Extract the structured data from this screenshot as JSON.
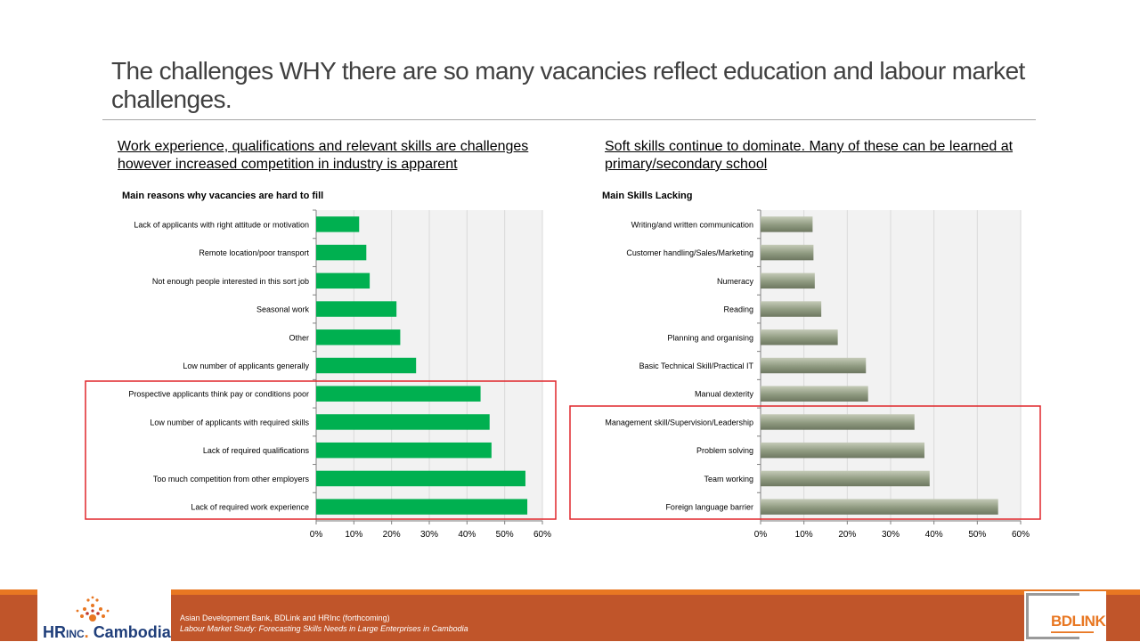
{
  "title": "The challenges WHY there are so many vacancies reflect education and labour market challenges.",
  "left_subheading": "Work experience, qualifications and relevant skills are challenges however increased competition in industry is apparent",
  "right_subheading": "Soft skills continue to dominate. Many of these can be learned at primary/secondary school",
  "chart_data": [
    {
      "type": "bar",
      "orientation": "horizontal",
      "title": "Main  reasons  why vacancies  are hard  to fill",
      "categories": [
        "Lack of applicants with right attitude or motivation",
        "Remote location/poor transport",
        "Not enough people interested in this sort job",
        "Seasonal work",
        "Other",
        "Low number of applicants generally",
        "Prospective applicants think pay or conditions poor",
        "Low number of applicants with required skills",
        "Lack of required qualifications",
        "Too much competition from other employers",
        "Lack of required work experience"
      ],
      "values": [
        11.4,
        13.3,
        14.2,
        21.3,
        22.3,
        26.5,
        43.6,
        46.0,
        46.5,
        55.5,
        56.0
      ],
      "xlim": [
        0,
        60
      ],
      "ticks": [
        "0%",
        "10%",
        "20%",
        "30%",
        "40%",
        "50%",
        "60%"
      ],
      "grid": true,
      "highlight_box": "last 5 categories",
      "colors": {
        "bar": "#00b050",
        "plot_bg": "#f2f2f2",
        "grid": "#d9d9d9",
        "highlight": "#e0262b"
      }
    },
    {
      "type": "bar",
      "orientation": "horizontal",
      "title": "Main  Skills  Lacking",
      "categories": [
        "Writing/and written communication",
        "Customer handling/Sales/Marketing",
        "Numeracy",
        "Reading",
        "Planning and organising",
        "Basic Technical Skill/Practical IT",
        "Manual dexterity",
        "Management skill/Supervision/Leadership",
        "Problem solving",
        "Team working",
        "Foreign language barrier"
      ],
      "values": [
        12.0,
        12.2,
        12.5,
        14.0,
        17.8,
        24.3,
        24.8,
        35.5,
        37.8,
        39.0,
        54.8
      ],
      "xlim": [
        0,
        60
      ],
      "ticks": [
        "0%",
        "10%",
        "20%",
        "30%",
        "40%",
        "50%",
        "60%"
      ],
      "grid": true,
      "highlight_box": "last 4 categories",
      "colors": {
        "bar": "#8f9a80",
        "plot_bg": "#f2f2f2",
        "grid": "#d9d9d9",
        "highlight": "#e0262b"
      }
    }
  ],
  "footer": {
    "logo_left": {
      "hr": "HR",
      "inc": "Inc",
      "cambodia": "Cambodia"
    },
    "source_line1": "Asian Development Bank, BDLink and HRInc (forthcoming)",
    "source_line2": "Labour Market Study: Forecasting Skills Needs in Large Enterprises in Cambodia",
    "logo_right": {
      "text": "BDLINK"
    },
    "colors": {
      "band": "#c0552a",
      "accent": "#e87722"
    }
  }
}
